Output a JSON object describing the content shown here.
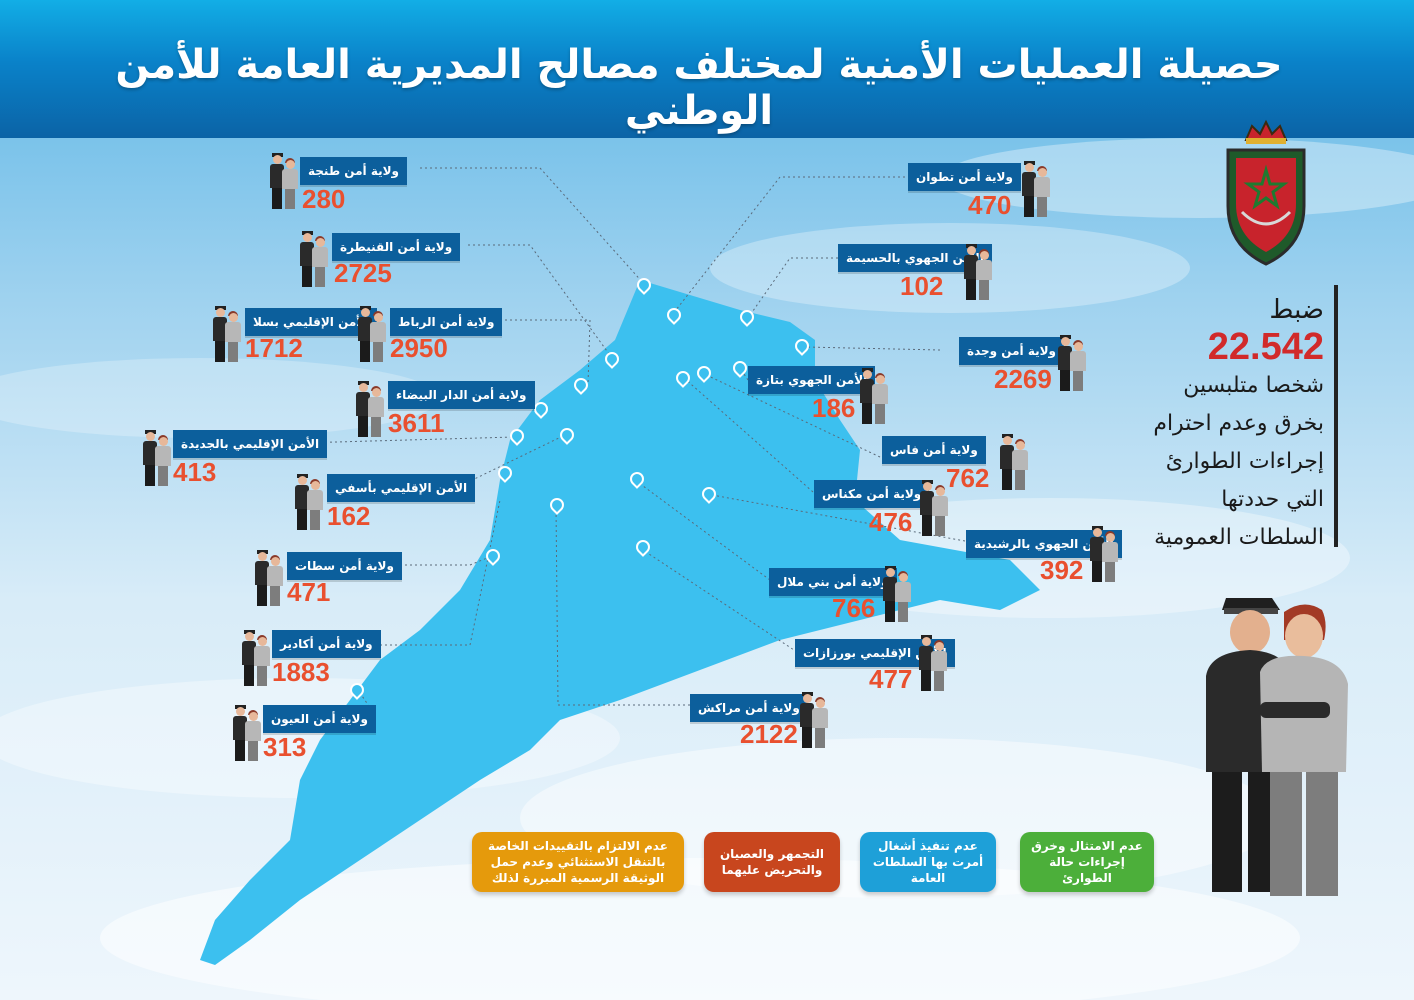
{
  "header": {
    "title": "حصيلة العمليات الأمنية لمختلف مصالح المديرية العامة للأمن الوطني"
  },
  "summary": {
    "verb": "ضبط",
    "total": "22.542",
    "lines": [
      "شخصا متلبسين",
      "بخرق وعدم احترام",
      "إجراءات الطوارئ",
      "التي حددتها",
      "السلطات العمومية"
    ]
  },
  "cities": [
    {
      "name": "ولاية أمن طنجة",
      "value": "280"
    },
    {
      "name": "ولاية أمن القنيطرة",
      "value": "2725"
    },
    {
      "name": "الأمن الإقليمي بسلا",
      "value": "1712"
    },
    {
      "name": "ولاية أمن الرباط",
      "value": "2950"
    },
    {
      "name": "ولاية أمن الدار البيضاء",
      "value": "3611"
    },
    {
      "name": "الأمن الإقليمي بالجديدة",
      "value": "413"
    },
    {
      "name": "الأمن الإقليمي بأسفي",
      "value": "162"
    },
    {
      "name": "ولاية أمن سطات",
      "value": "471"
    },
    {
      "name": "ولاية أمن أكادير",
      "value": "1883"
    },
    {
      "name": "ولاية أمن العيون",
      "value": "313"
    },
    {
      "name": "ولاية أمن تطوان",
      "value": "470"
    },
    {
      "name": "الأمن الجهوي بالحسيمة",
      "value": "102"
    },
    {
      "name": "ولاية أمن وجدة",
      "value": "2269"
    },
    {
      "name": "الأمن الجهوي بتازة",
      "value": "186"
    },
    {
      "name": "ولاية أمن فاس",
      "value": "762"
    },
    {
      "name": "ولاية أمن مكناس",
      "value": "476"
    },
    {
      "name": "الأمن الجهوي بالرشيدية",
      "value": "392"
    },
    {
      "name": "ولاية أمن بني ملال",
      "value": "766"
    },
    {
      "name": "الأمن الإقليمي بورزازات",
      "value": "477"
    },
    {
      "name": "ولاية أمن مراكش",
      "value": "2122"
    }
  ],
  "categories": [
    {
      "text": "عدم الامتثال وخرق إجراءات حالة الطوارئ",
      "color": "#4caf3a"
    },
    {
      "text": "عدم تنفيذ أشغال أمرت بها السلطات العامة",
      "color": "#1ea0d8"
    },
    {
      "text": "التجمهر والعصيان والتحريض عليهما",
      "color": "#c8461e"
    },
    {
      "text": "عدم الالتزام بالتقييدات الخاصة بالتنقل الاستثنائي وعدم حمل الوثيقة الرسمية المبررة لذلك",
      "color": "#e59a0c"
    }
  ],
  "colors": {
    "label_bg": "#0c5f9c",
    "value": "#e9502f",
    "map": "#3cc0ef",
    "header": "#0a82c9"
  }
}
